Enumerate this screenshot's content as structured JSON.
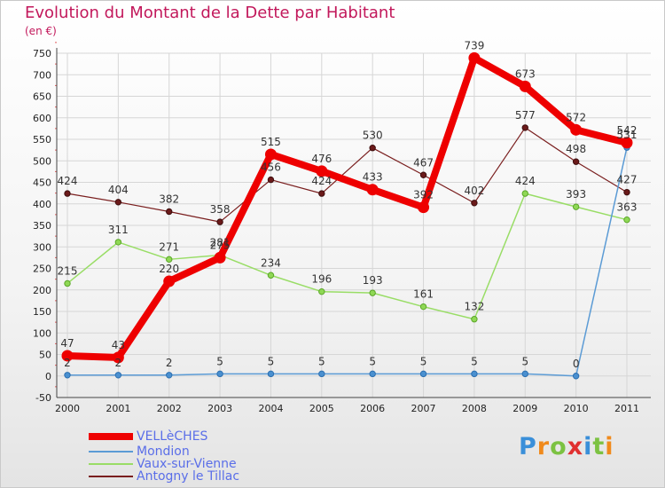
{
  "header": {
    "title": "Evolution du Montant de la Dette par Habitant",
    "subtitle": "(en €)"
  },
  "logo": {
    "text": "Proxiti"
  },
  "chart_data": {
    "type": "line",
    "title": "Evolution du Montant de la Dette par Habitant",
    "subtitle": "(en €)",
    "categories": [
      "2000",
      "2001",
      "2002",
      "2003",
      "2004",
      "2005",
      "2006",
      "2007",
      "2008",
      "2009",
      "2010",
      "2011"
    ],
    "ylim": [
      -50,
      750
    ],
    "yticks": [
      "-50",
      "0",
      "50",
      "100",
      "150",
      "200",
      "250",
      "300",
      "350",
      "400",
      "450",
      "500",
      "550",
      "600",
      "650",
      "700",
      "750"
    ],
    "grid": true,
    "legend_position": "bottom-left",
    "series": [
      {
        "name": "VELLèCHES",
        "color": "#ee0000",
        "values": [
          47,
          43,
          220,
          275,
          515,
          476,
          433,
          392,
          739,
          673,
          572,
          542
        ]
      },
      {
        "name": "Mondion",
        "color": "#5b9bd5",
        "values": [
          2,
          2,
          2,
          5,
          5,
          5,
          5,
          5,
          5,
          5,
          0,
          531
        ]
      },
      {
        "name": "Vaux-sur-Vienne",
        "color": "#99dd66",
        "values": [
          215,
          311,
          271,
          281,
          234,
          196,
          193,
          161,
          132,
          424,
          393,
          363
        ]
      },
      {
        "name": "Antogny le Tillac",
        "color": "#7a1f1f",
        "values": [
          424,
          404,
          382,
          358,
          456,
          424,
          530,
          467,
          402,
          577,
          498,
          427
        ]
      }
    ]
  }
}
